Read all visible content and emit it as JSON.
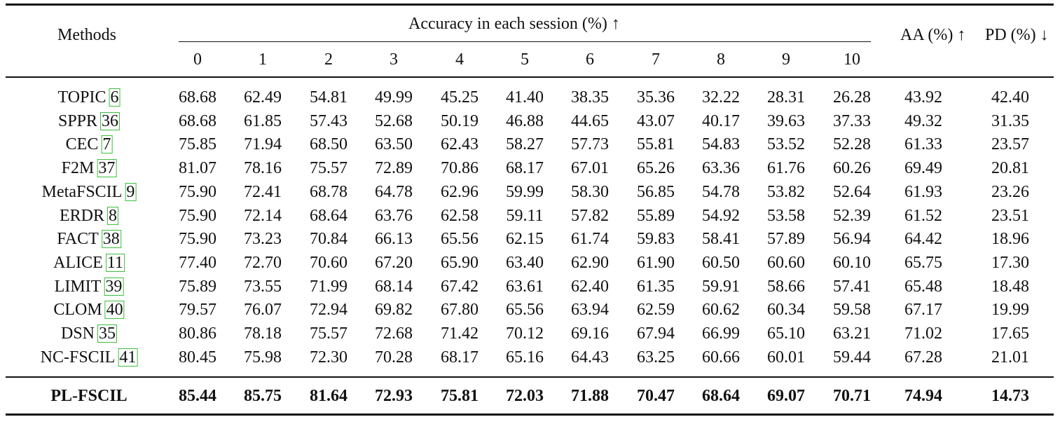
{
  "header": {
    "methods": "Methods",
    "accuracy_group": "Accuracy in each session (%) ↑",
    "sessions": [
      "0",
      "1",
      "2",
      "3",
      "4",
      "5",
      "6",
      "7",
      "8",
      "9",
      "10"
    ],
    "aa": "AA (%) ↑",
    "pd": "PD (%) ↓"
  },
  "rows": [
    {
      "method": "TOPIC",
      "cite": "6",
      "values": [
        "68.68",
        "62.49",
        "54.81",
        "49.99",
        "45.25",
        "41.40",
        "38.35",
        "35.36",
        "32.22",
        "28.31",
        "26.28",
        "43.92",
        "42.40"
      ]
    },
    {
      "method": "SPPR",
      "cite": "36",
      "values": [
        "68.68",
        "61.85",
        "57.43",
        "52.68",
        "50.19",
        "46.88",
        "44.65",
        "43.07",
        "40.17",
        "39.63",
        "37.33",
        "49.32",
        "31.35"
      ]
    },
    {
      "method": "CEC",
      "cite": "7",
      "values": [
        "75.85",
        "71.94",
        "68.50",
        "63.50",
        "62.43",
        "58.27",
        "57.73",
        "55.81",
        "54.83",
        "53.52",
        "52.28",
        "61.33",
        "23.57"
      ]
    },
    {
      "method": "F2M",
      "cite": "37",
      "values": [
        "81.07",
        "78.16",
        "75.57",
        "72.89",
        "70.86",
        "68.17",
        "67.01",
        "65.26",
        "63.36",
        "61.76",
        "60.26",
        "69.49",
        "20.81"
      ]
    },
    {
      "method": "MetaFSCIL",
      "cite": "9",
      "values": [
        "75.90",
        "72.41",
        "68.78",
        "64.78",
        "62.96",
        "59.99",
        "58.30",
        "56.85",
        "54.78",
        "53.82",
        "52.64",
        "61.93",
        "23.26"
      ]
    },
    {
      "method": "ERDR",
      "cite": "8",
      "values": [
        "75.90",
        "72.14",
        "68.64",
        "63.76",
        "62.58",
        "59.11",
        "57.82",
        "55.89",
        "54.92",
        "53.58",
        "52.39",
        "61.52",
        "23.51"
      ]
    },
    {
      "method": "FACT",
      "cite": "38",
      "values": [
        "75.90",
        "73.23",
        "70.84",
        "66.13",
        "65.56",
        "62.15",
        "61.74",
        "59.83",
        "58.41",
        "57.89",
        "56.94",
        "64.42",
        "18.96"
      ]
    },
    {
      "method": "ALICE",
      "cite": "11",
      "values": [
        "77.40",
        "72.70",
        "70.60",
        "67.20",
        "65.90",
        "63.40",
        "62.90",
        "61.90",
        "60.50",
        "60.60",
        "60.10",
        "65.75",
        "17.30"
      ]
    },
    {
      "method": "LIMIT",
      "cite": "39",
      "values": [
        "75.89",
        "73.55",
        "71.99",
        "68.14",
        "67.42",
        "63.61",
        "62.40",
        "61.35",
        "59.91",
        "58.66",
        "57.41",
        "65.48",
        "18.48"
      ]
    },
    {
      "method": "CLOM",
      "cite": "40",
      "values": [
        "79.57",
        "76.07",
        "72.94",
        "69.82",
        "67.80",
        "65.56",
        "63.94",
        "62.59",
        "60.62",
        "60.34",
        "59.58",
        "67.17",
        "19.99"
      ]
    },
    {
      "method": "DSN",
      "cite": "35",
      "values": [
        "80.86",
        "78.18",
        "75.57",
        "72.68",
        "71.42",
        "70.12",
        "69.16",
        "67.94",
        "66.99",
        "65.10",
        "63.21",
        "71.02",
        "17.65"
      ]
    },
    {
      "method": "NC-FSCIL",
      "cite": "41",
      "values": [
        "80.45",
        "75.98",
        "72.30",
        "70.28",
        "68.17",
        "65.16",
        "64.43",
        "63.25",
        "60.66",
        "60.01",
        "59.44",
        "67.28",
        "21.01"
      ]
    }
  ],
  "final_row": {
    "method": "PL-FSCIL",
    "values": [
      "85.44",
      "85.75",
      "81.64",
      "72.93",
      "75.81",
      "72.03",
      "71.88",
      "70.47",
      "68.64",
      "69.07",
      "70.71",
      "74.94",
      "14.73"
    ]
  }
}
